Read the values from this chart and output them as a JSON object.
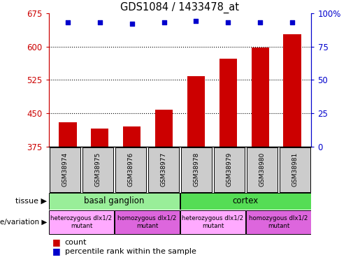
{
  "title": "GDS1084 / 1433478_at",
  "samples": [
    "GSM38974",
    "GSM38975",
    "GSM38976",
    "GSM38977",
    "GSM38978",
    "GSM38979",
    "GSM38980",
    "GSM38981"
  ],
  "counts": [
    430,
    415,
    420,
    458,
    533,
    572,
    597,
    627
  ],
  "percentiles": [
    93,
    93,
    92,
    93,
    94,
    93,
    93,
    93
  ],
  "ymin": 375,
  "ymax": 675,
  "yticks": [
    375,
    450,
    525,
    600,
    675
  ],
  "y2ticks": [
    0,
    25,
    50,
    75,
    100
  ],
  "bar_color": "#cc0000",
  "dot_color": "#0000cc",
  "tissue_groups": [
    {
      "label": "basal ganglion",
      "start": 0,
      "end": 4,
      "color": "#99ee99"
    },
    {
      "label": "cortex",
      "start": 4,
      "end": 8,
      "color": "#55dd55"
    }
  ],
  "genotype_groups": [
    {
      "label": "heterozygous dlx1/2\nmutant",
      "start": 0,
      "end": 2,
      "color": "#ffaaff"
    },
    {
      "label": "homozygous dlx1/2\nmutant",
      "start": 2,
      "end": 4,
      "color": "#dd66dd"
    },
    {
      "label": "heterozygous dlx1/2\nmutant",
      "start": 4,
      "end": 6,
      "color": "#ffaaff"
    },
    {
      "label": "homozygous dlx1/2\nmutant",
      "start": 6,
      "end": 8,
      "color": "#dd66dd"
    }
  ],
  "sample_box_color": "#cccccc",
  "tissue_label": "tissue",
  "genotype_label": "genotype/variation",
  "legend_count_color": "#cc0000",
  "legend_percentile_color": "#0000cc"
}
